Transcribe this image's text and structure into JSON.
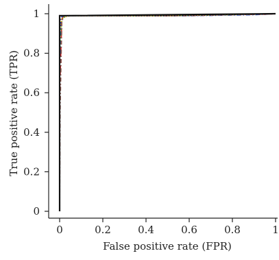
{
  "chart_data": {
    "type": "line",
    "title": "",
    "xlabel": "False positive rate (FPR)",
    "ylabel": "True positive rate (TPR)",
    "xlim": [
      0,
      1
    ],
    "ylim": [
      0,
      1
    ],
    "x_ticks": [
      0,
      0.2,
      0.4,
      0.6,
      0.8,
      1
    ],
    "y_ticks": [
      0,
      0.2,
      0.4,
      0.6,
      0.8,
      1
    ],
    "x_tick_labels": [
      "0",
      "0.2",
      "0.4",
      "0.6",
      "0.8",
      "1"
    ],
    "y_tick_labels": [
      "0",
      "0.2",
      "0.4",
      "0.6",
      "0.8",
      "1"
    ],
    "grid": false,
    "legend": "none",
    "series": [
      {
        "color": "#d62728",
        "dash": "dash",
        "x": [
          0,
          0,
          0.01,
          0.02,
          0.2,
          0.5,
          0.8,
          0.95,
          1
        ],
        "y": [
          0,
          0.6,
          0.97,
          0.99,
          0.99,
          0.99,
          0.995,
          0.997,
          1
        ]
      },
      {
        "color": "#1f3fbf",
        "dash": "dashdot",
        "x": [
          0,
          0,
          0.005,
          0.02,
          0.3,
          0.6,
          0.9,
          1
        ],
        "y": [
          0,
          0.7,
          0.98,
          0.99,
          0.99,
          0.99,
          0.995,
          1
        ]
      },
      {
        "color": "#2ca02c",
        "dash": "dot",
        "x": [
          0,
          0,
          0.01,
          0.03,
          0.4,
          0.8,
          1
        ],
        "y": [
          0,
          0.8,
          0.97,
          0.99,
          0.99,
          0.995,
          1
        ]
      },
      {
        "color": "#e6a817",
        "dash": "dot",
        "x": [
          0,
          0,
          0.01,
          0.05,
          0.5,
          0.9,
          1
        ],
        "y": [
          0,
          0.9,
          0.98,
          0.99,
          0.99,
          0.998,
          1
        ]
      },
      {
        "color": "#8c564b",
        "dash": "dashdot",
        "x": [
          0,
          0.002,
          0.01,
          0.02,
          0.6,
          1
        ],
        "y": [
          0,
          0.5,
          0.96,
          0.99,
          0.99,
          1
        ]
      },
      {
        "color": "#111111",
        "dash": "solid",
        "x": [
          0,
          0,
          0.02,
          1
        ],
        "y": [
          0,
          0.99,
          0.99,
          1
        ]
      },
      {
        "color": "#111111",
        "dash": "dot",
        "x": [
          0,
          0,
          0.03,
          0.5,
          1
        ],
        "y": [
          0,
          0.99,
          0.99,
          0.99,
          1
        ]
      }
    ]
  }
}
